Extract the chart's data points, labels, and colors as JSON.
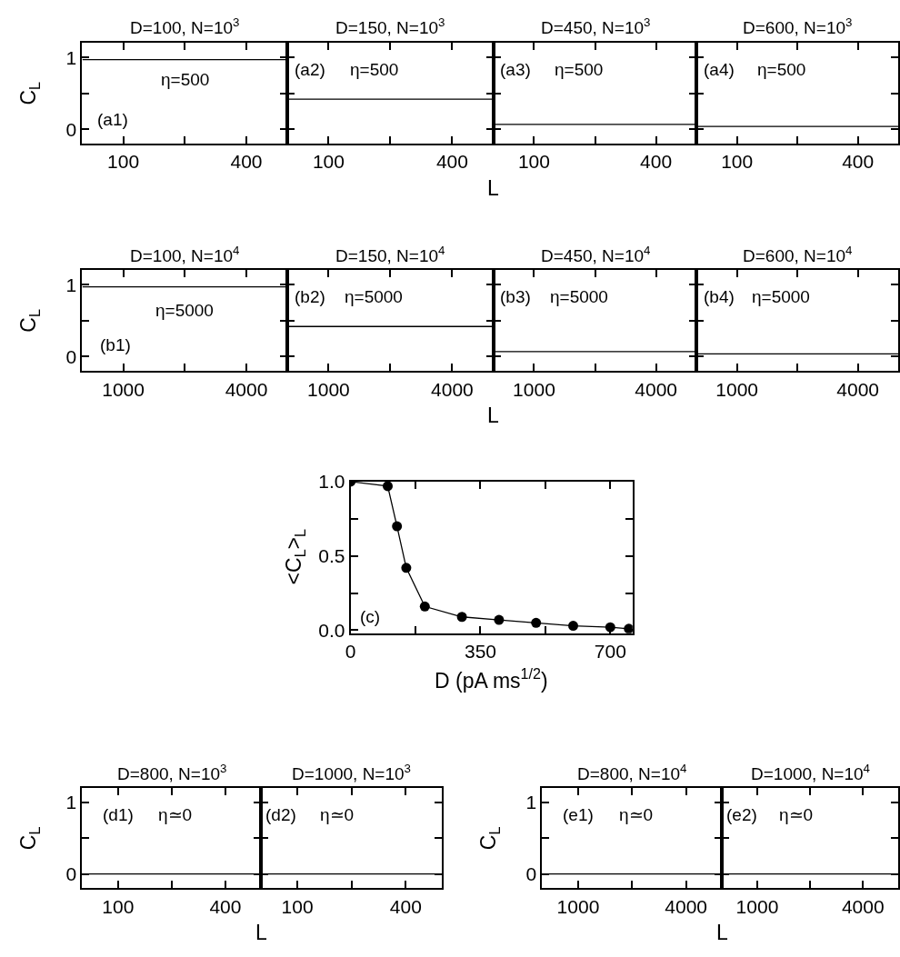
{
  "chart_data": [
    {
      "type": "line",
      "title": "D=100, N=10$^{3}$",
      "ylabel": "C$_{L}$",
      "xlim": [
        0,
        500
      ],
      "xticks": [
        100,
        {
          "value": 250,
          "label": null
        },
        400
      ],
      "ylim": [
        -0.2,
        1.2
      ],
      "yticks": [
        0,
        {
          "value": 0.5,
          "label": null
        },
        1
      ],
      "series": [
        {
          "color": "#000000",
          "x": [
            0,
            500
          ],
          "values": [
            0.97,
            0.97
          ]
        }
      ],
      "annotations": [
        "(a1)",
        "η=500"
      ]
    },
    {
      "type": "line",
      "title": "D=150, N=10$^{3}$",
      "xlabel": "L",
      "xlim": [
        0,
        500
      ],
      "xticks": [
        100,
        {
          "value": 250,
          "label": null
        },
        400
      ],
      "ylim": [
        -0.2,
        1.2
      ],
      "yticks": [
        0,
        {
          "value": 0.5,
          "label": null
        },
        1
      ],
      "tick_labels": "x",
      "series": [
        {
          "color": "#000000",
          "x": [
            0,
            500
          ],
          "values": [
            0.42,
            0.42
          ]
        }
      ],
      "annotations": [
        "(a2)",
        "η=500"
      ]
    },
    {
      "type": "line",
      "title": "D=450, N=10$^{3}$",
      "xlim": [
        0,
        500
      ],
      "xticks": [
        100,
        {
          "value": 250,
          "label": null
        },
        400
      ],
      "ylim": [
        -0.2,
        1.2
      ],
      "yticks": [
        0,
        {
          "value": 0.5,
          "label": null
        },
        1
      ],
      "tick_labels": "x",
      "series": [
        {
          "color": "#000000",
          "x": [
            0,
            500
          ],
          "values": [
            0.07,
            0.07
          ]
        }
      ],
      "annotations": [
        "(a3)",
        "η=500"
      ]
    },
    {
      "type": "line",
      "title": "D=600, N=10$^{3}$",
      "xlim": [
        0,
        500
      ],
      "xticks": [
        100,
        {
          "value": 250,
          "label": null
        },
        400
      ],
      "ylim": [
        -0.2,
        1.2
      ],
      "yticks": [
        0,
        {
          "value": 0.5,
          "label": null
        },
        1
      ],
      "tick_labels": "x",
      "series": [
        {
          "color": "#000000",
          "x": [
            0,
            500
          ],
          "values": [
            0.04,
            0.04
          ]
        }
      ],
      "annotations": [
        "(a4)",
        "η=500"
      ]
    },
    {
      "type": "line",
      "title": "D=100, N=10$^{4}$",
      "ylabel": "C$_{L}$",
      "xlim": [
        0,
        5000
      ],
      "xticks": [
        1000,
        {
          "value": 2500,
          "label": null
        },
        4000
      ],
      "ylim": [
        -0.2,
        1.2
      ],
      "yticks": [
        0,
        {
          "value": 0.5,
          "label": null
        },
        1
      ],
      "series": [
        {
          "color": "#000000",
          "x": [
            0,
            5000
          ],
          "values": [
            0.97,
            0.97
          ]
        }
      ],
      "annotations": [
        "(b1)",
        "η=5000"
      ]
    },
    {
      "type": "line",
      "title": "D=150, N=10$^{4}$",
      "xlabel": "L",
      "xlim": [
        0,
        5000
      ],
      "xticks": [
        1000,
        {
          "value": 2500,
          "label": null
        },
        4000
      ],
      "ylim": [
        -0.2,
        1.2
      ],
      "yticks": [
        0,
        {
          "value": 0.5,
          "label": null
        },
        1
      ],
      "tick_labels": "x",
      "series": [
        {
          "color": "#000000",
          "x": [
            0,
            5000
          ],
          "values": [
            0.42,
            0.42
          ]
        }
      ],
      "annotations": [
        "(b2)",
        "η=5000"
      ]
    },
    {
      "type": "line",
      "title": "D=450, N=10$^{4}$",
      "xlim": [
        0,
        5000
      ],
      "xticks": [
        1000,
        {
          "value": 2500,
          "label": null
        },
        4000
      ],
      "ylim": [
        -0.2,
        1.2
      ],
      "yticks": [
        0,
        {
          "value": 0.5,
          "label": null
        },
        1
      ],
      "tick_labels": "x",
      "series": [
        {
          "color": "#000000",
          "x": [
            0,
            5000
          ],
          "values": [
            0.07,
            0.07
          ]
        }
      ],
      "annotations": [
        "(b3)",
        "η=5000"
      ]
    },
    {
      "type": "line",
      "title": "D=600, N=10$^{4}$",
      "xlim": [
        0,
        5000
      ],
      "xticks": [
        1000,
        {
          "value": 2500,
          "label": null
        },
        4000
      ],
      "ylim": [
        -0.2,
        1.2
      ],
      "yticks": [
        0,
        {
          "value": 0.5,
          "label": null
        },
        1
      ],
      "tick_labels": "x",
      "series": [
        {
          "color": "#000000",
          "x": [
            0,
            5000
          ],
          "values": [
            0.04,
            0.04
          ]
        }
      ],
      "annotations": [
        "(b4)",
        "η=5000"
      ]
    },
    {
      "type": "line",
      "xlabel": "D (pA ms$^{1/2}$)",
      "ylabel": "<C$_{L}$>$_{L}$",
      "xlim": [
        0,
        760
      ],
      "xticks": [
        0,
        {
          "value": 175,
          "label": null
        },
        350,
        {
          "value": 525,
          "label": null
        },
        700
      ],
      "ylim": [
        -0.02,
        1.0
      ],
      "yticks": [
        {
          "value": 0,
          "label": "0.0"
        },
        {
          "value": 0.25,
          "label": null
        },
        0.5,
        {
          "value": 0.75,
          "label": null
        },
        {
          "value": 1,
          "label": "1.0"
        }
      ],
      "marker": "circle",
      "series": [
        {
          "color": "#000000",
          "x": [
            0,
            100,
            125,
            150,
            200,
            300,
            400,
            500,
            600,
            700,
            750
          ],
          "values": [
            1.0,
            0.97,
            0.7,
            0.42,
            0.16,
            0.09,
            0.07,
            0.05,
            0.03,
            0.02,
            0.01
          ]
        }
      ],
      "annotations": [
        "(c)"
      ]
    },
    {
      "type": "line",
      "title": "D=800, N=10$^{3}$",
      "ylabel": "C$_{L}$",
      "xlabel": "L",
      "xlim": [
        0,
        500
      ],
      "xticks": [
        100,
        {
          "value": 250,
          "label": null
        },
        400
      ],
      "ylim": [
        -0.2,
        1.2
      ],
      "yticks": [
        0,
        {
          "value": 0.5,
          "label": null
        },
        1
      ],
      "series": [
        {
          "color": "#000000",
          "x": [
            0,
            500
          ],
          "values": [
            0.0,
            0.0
          ]
        }
      ],
      "annotations": [
        "(d1)",
        "η≃0"
      ]
    },
    {
      "type": "line",
      "title": "D=1000, N=10$^{3}$",
      "xlim": [
        0,
        500
      ],
      "xticks": [
        100,
        {
          "value": 250,
          "label": null
        },
        400
      ],
      "ylim": [
        -0.2,
        1.2
      ],
      "yticks": [
        0,
        {
          "value": 0.5,
          "label": null
        },
        1
      ],
      "tick_labels": "x",
      "series": [
        {
          "color": "#000000",
          "x": [
            0,
            500
          ],
          "values": [
            0.0,
            0.0
          ]
        }
      ],
      "annotations": [
        "(d2)",
        "η≃0"
      ]
    },
    {
      "type": "line",
      "title": "D=800, N=10$^{4}$",
      "ylabel": "C$_{L}$",
      "xlabel": "L",
      "xlim": [
        0,
        5000
      ],
      "xticks": [
        1000,
        {
          "value": 2500,
          "label": null
        },
        4000
      ],
      "ylim": [
        -0.2,
        1.2
      ],
      "yticks": [
        0,
        {
          "value": 0.5,
          "label": null
        },
        1
      ],
      "series": [
        {
          "color": "#000000",
          "x": [
            0,
            5000
          ],
          "values": [
            0.0,
            0.0
          ]
        }
      ],
      "annotations": [
        "(e1)",
        "η≃0"
      ]
    },
    {
      "type": "line",
      "title": "D=1000, N=10$^{4}$",
      "xlim": [
        0,
        5000
      ],
      "xticks": [
        1000,
        {
          "value": 2500,
          "label": null
        },
        4000
      ],
      "ylim": [
        -0.2,
        1.2
      ],
      "yticks": [
        0,
        {
          "value": 0.5,
          "label": null
        },
        1
      ],
      "tick_labels": "x",
      "series": [
        {
          "color": "#000000",
          "x": [
            0,
            5000
          ],
          "values": [
            0.0,
            0.0
          ]
        }
      ],
      "annotations": [
        "(e2)",
        "η≃0"
      ]
    }
  ]
}
